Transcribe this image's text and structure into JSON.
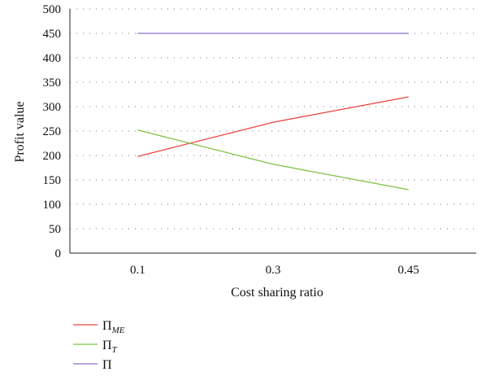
{
  "chart_data": {
    "type": "line",
    "title": "",
    "xlabel": "Cost sharing ratio",
    "ylabel": "Profit value",
    "categories": [
      "0.1",
      "0.3",
      "0.45"
    ],
    "ylim": [
      0,
      500
    ],
    "yticks": [
      0,
      50,
      100,
      150,
      200,
      250,
      300,
      350,
      400,
      450,
      500
    ],
    "grid": true,
    "legend_position": "bottom-left",
    "series": [
      {
        "name": "Π",
        "subscript": "ME",
        "color": "#e8433f",
        "values": [
          198,
          268,
          320
        ]
      },
      {
        "name": "Π",
        "subscript": "T",
        "color": "#7dc142",
        "values": [
          252,
          182,
          130
        ]
      },
      {
        "name": "Π",
        "subscript": "",
        "color": "#8b6fc8",
        "values": [
          450,
          450,
          450
        ]
      }
    ]
  }
}
